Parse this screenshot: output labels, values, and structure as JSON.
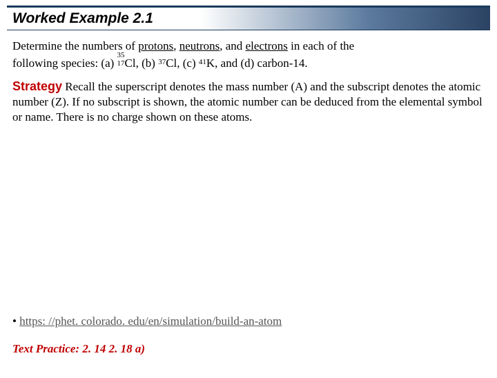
{
  "title": "Worked Example 2.1",
  "problem": {
    "line1_prefix": "Determine the numbers of ",
    "underlined1": "protons",
    "comma1": ", ",
    "underlined2": "neutrons",
    "comma2": ", and ",
    "underlined3": "electrons",
    "line1_suffix": " in each of the",
    "line2_prefix": "following species: (a) ",
    "iso_a": {
      "sup": "35",
      "sub": "17",
      "sym": "Cl"
    },
    "mid1": ", (b) ",
    "iso_b": {
      "sup": "37",
      "sub": "",
      "sym": "Cl"
    },
    "mid2": ", (c) ",
    "iso_c": {
      "sup": "41",
      "sub": "",
      "sym": "K"
    },
    "line2_suffix": ", and (d) carbon-14."
  },
  "strategy": {
    "label": "Strategy",
    "text": "  Recall the superscript denotes the mass number (A) and the subscript denotes the atomic number (Z). If no subscript is shown, the atomic number can be deduced from the elemental symbol or name. There is no charge shown on these atoms."
  },
  "link": {
    "bullet": "• ",
    "text": "https: //phet. colorado. edu/en/simulation/build-an-atom"
  },
  "practice": "Text Practice: 2. 14  2. 18 a)",
  "colors": {
    "accent_red": "#c00000",
    "title_border": "#1a3a5c",
    "gradient_start": "#ffffff",
    "gradient_end": "#2b4263",
    "link_gray": "#555555"
  }
}
